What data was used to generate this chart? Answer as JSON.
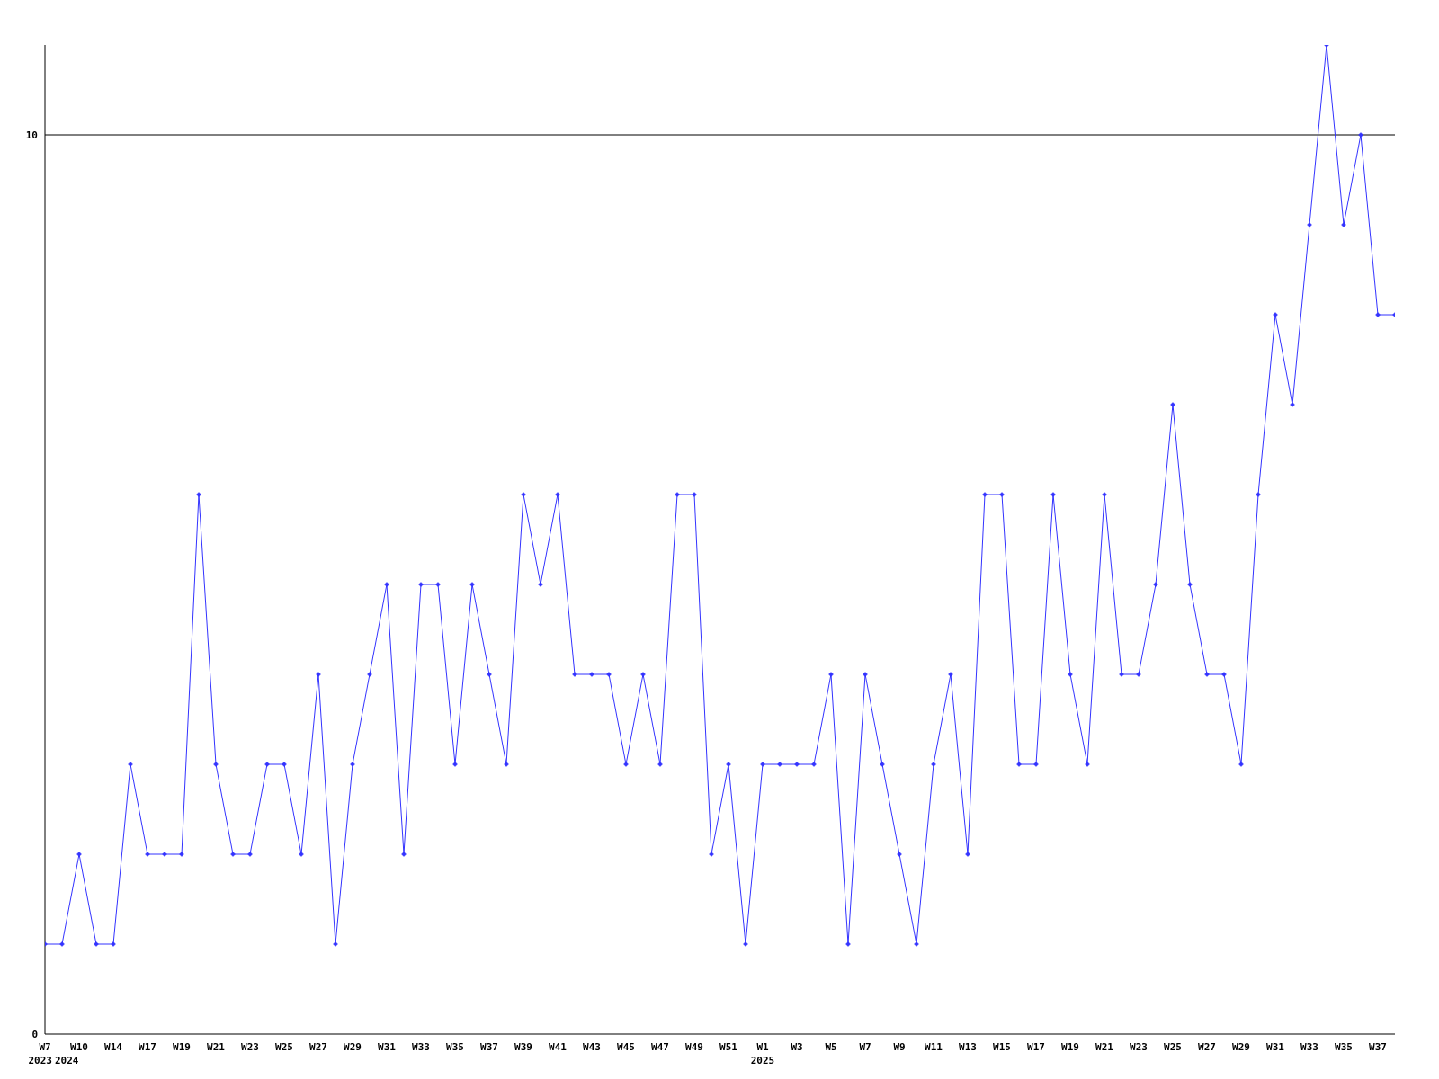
{
  "chart_data": {
    "type": "line",
    "categories": [
      "W7\n2023",
      "\n2024",
      "W10",
      null,
      "W14",
      null,
      "W17",
      null,
      "W19",
      null,
      "W21",
      null,
      "W23",
      null,
      "W25",
      null,
      "W27",
      null,
      "W29",
      null,
      "W31",
      null,
      "W33",
      null,
      "W35",
      null,
      "W37",
      null,
      "W39",
      null,
      "W41",
      null,
      "W43",
      null,
      "W45",
      null,
      "W47",
      null,
      "W49",
      null,
      "W51",
      null,
      "W1\n2025",
      null,
      "W3",
      null,
      "W5",
      null,
      "W7",
      null,
      "W9",
      null,
      "W11",
      null,
      "W13",
      null,
      "W15",
      null,
      "W17",
      null,
      "W19",
      null,
      "W21",
      null,
      "W23",
      null,
      "W25",
      null,
      "W27",
      null,
      "W29",
      null,
      "W31",
      null,
      "W33",
      null,
      "W35",
      null,
      "W37",
      null
    ],
    "series": [
      {
        "color": "#3333ff",
        "values": [
          1,
          1,
          2,
          1,
          1,
          3,
          2,
          2,
          2,
          6,
          3,
          2,
          2,
          3,
          3,
          2,
          4,
          1,
          3,
          4,
          5,
          2,
          5,
          5,
          3,
          5,
          4,
          3,
          6,
          5,
          6,
          4,
          4,
          4,
          3,
          4,
          3,
          6,
          6,
          2,
          3,
          1,
          3,
          3,
          3,
          3,
          4,
          1,
          4,
          3,
          2,
          1,
          3,
          4,
          2,
          6,
          6,
          3,
          3,
          6,
          4,
          3,
          6,
          4,
          4,
          5,
          7,
          5,
          4,
          4,
          3,
          6,
          8,
          7,
          9,
          11,
          9,
          10,
          8,
          8
        ]
      }
    ],
    "ylim": [
      0,
      11
    ],
    "yticks": [
      0,
      10
    ],
    "grid": "y",
    "marker": "diamond",
    "line_style": "solid"
  }
}
